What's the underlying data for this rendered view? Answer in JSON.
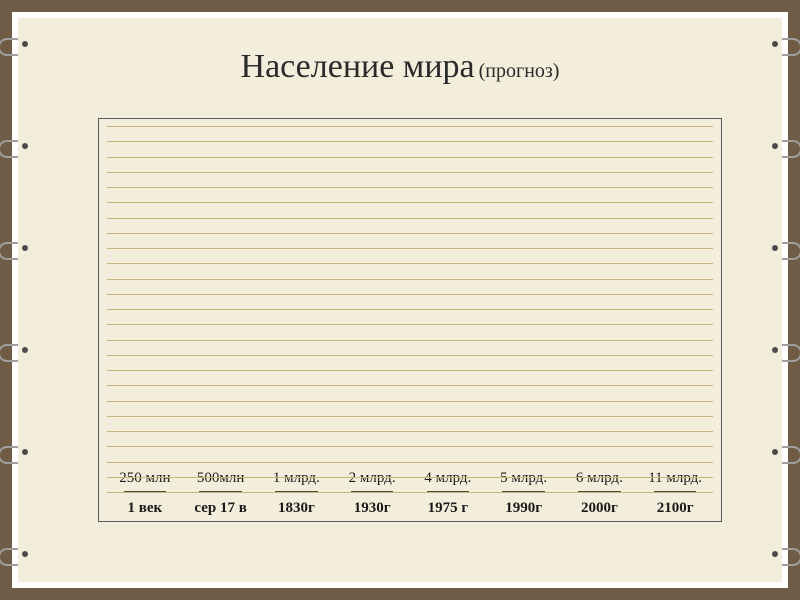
{
  "title_main": "Население мира",
  "title_sub": "(прогноз)",
  "chart": {
    "type": "bar",
    "ymax": 12.0,
    "grid_count": 24,
    "grid_color": "#c9b47a",
    "grid_width": 1,
    "background_color": "#f3eedc",
    "bar_color": "#9db85f",
    "bar_border_color": "#4a4a4a",
    "bar_width_pct": 56,
    "title_fontsize": 34,
    "sub_fontsize": 20,
    "label_fontsize": 15,
    "xlabel_fontsize": 15,
    "xlabel_fontweight": "bold",
    "font_family": "Times New Roman, serif",
    "categories": [
      "1 век",
      "сер 17 в",
      "1830г",
      "1930г",
      "1975 г",
      "1990г",
      "2000г",
      "2100г"
    ],
    "values": [
      0.25,
      0.5,
      1.0,
      2.0,
      4.0,
      5.0,
      6.0,
      11.0
    ],
    "value_labels": [
      "",
      "250 млн",
      "500млн",
      "1 млрд.",
      "2 млрд.",
      "4 млрд.",
      "5 млрд.",
      "6 млрд.",
      "11 млрд."
    ]
  },
  "frame": {
    "outer_color": "#6e5c47",
    "inner_border_color": "#ffffff",
    "paper_color": "#f3eedc"
  }
}
